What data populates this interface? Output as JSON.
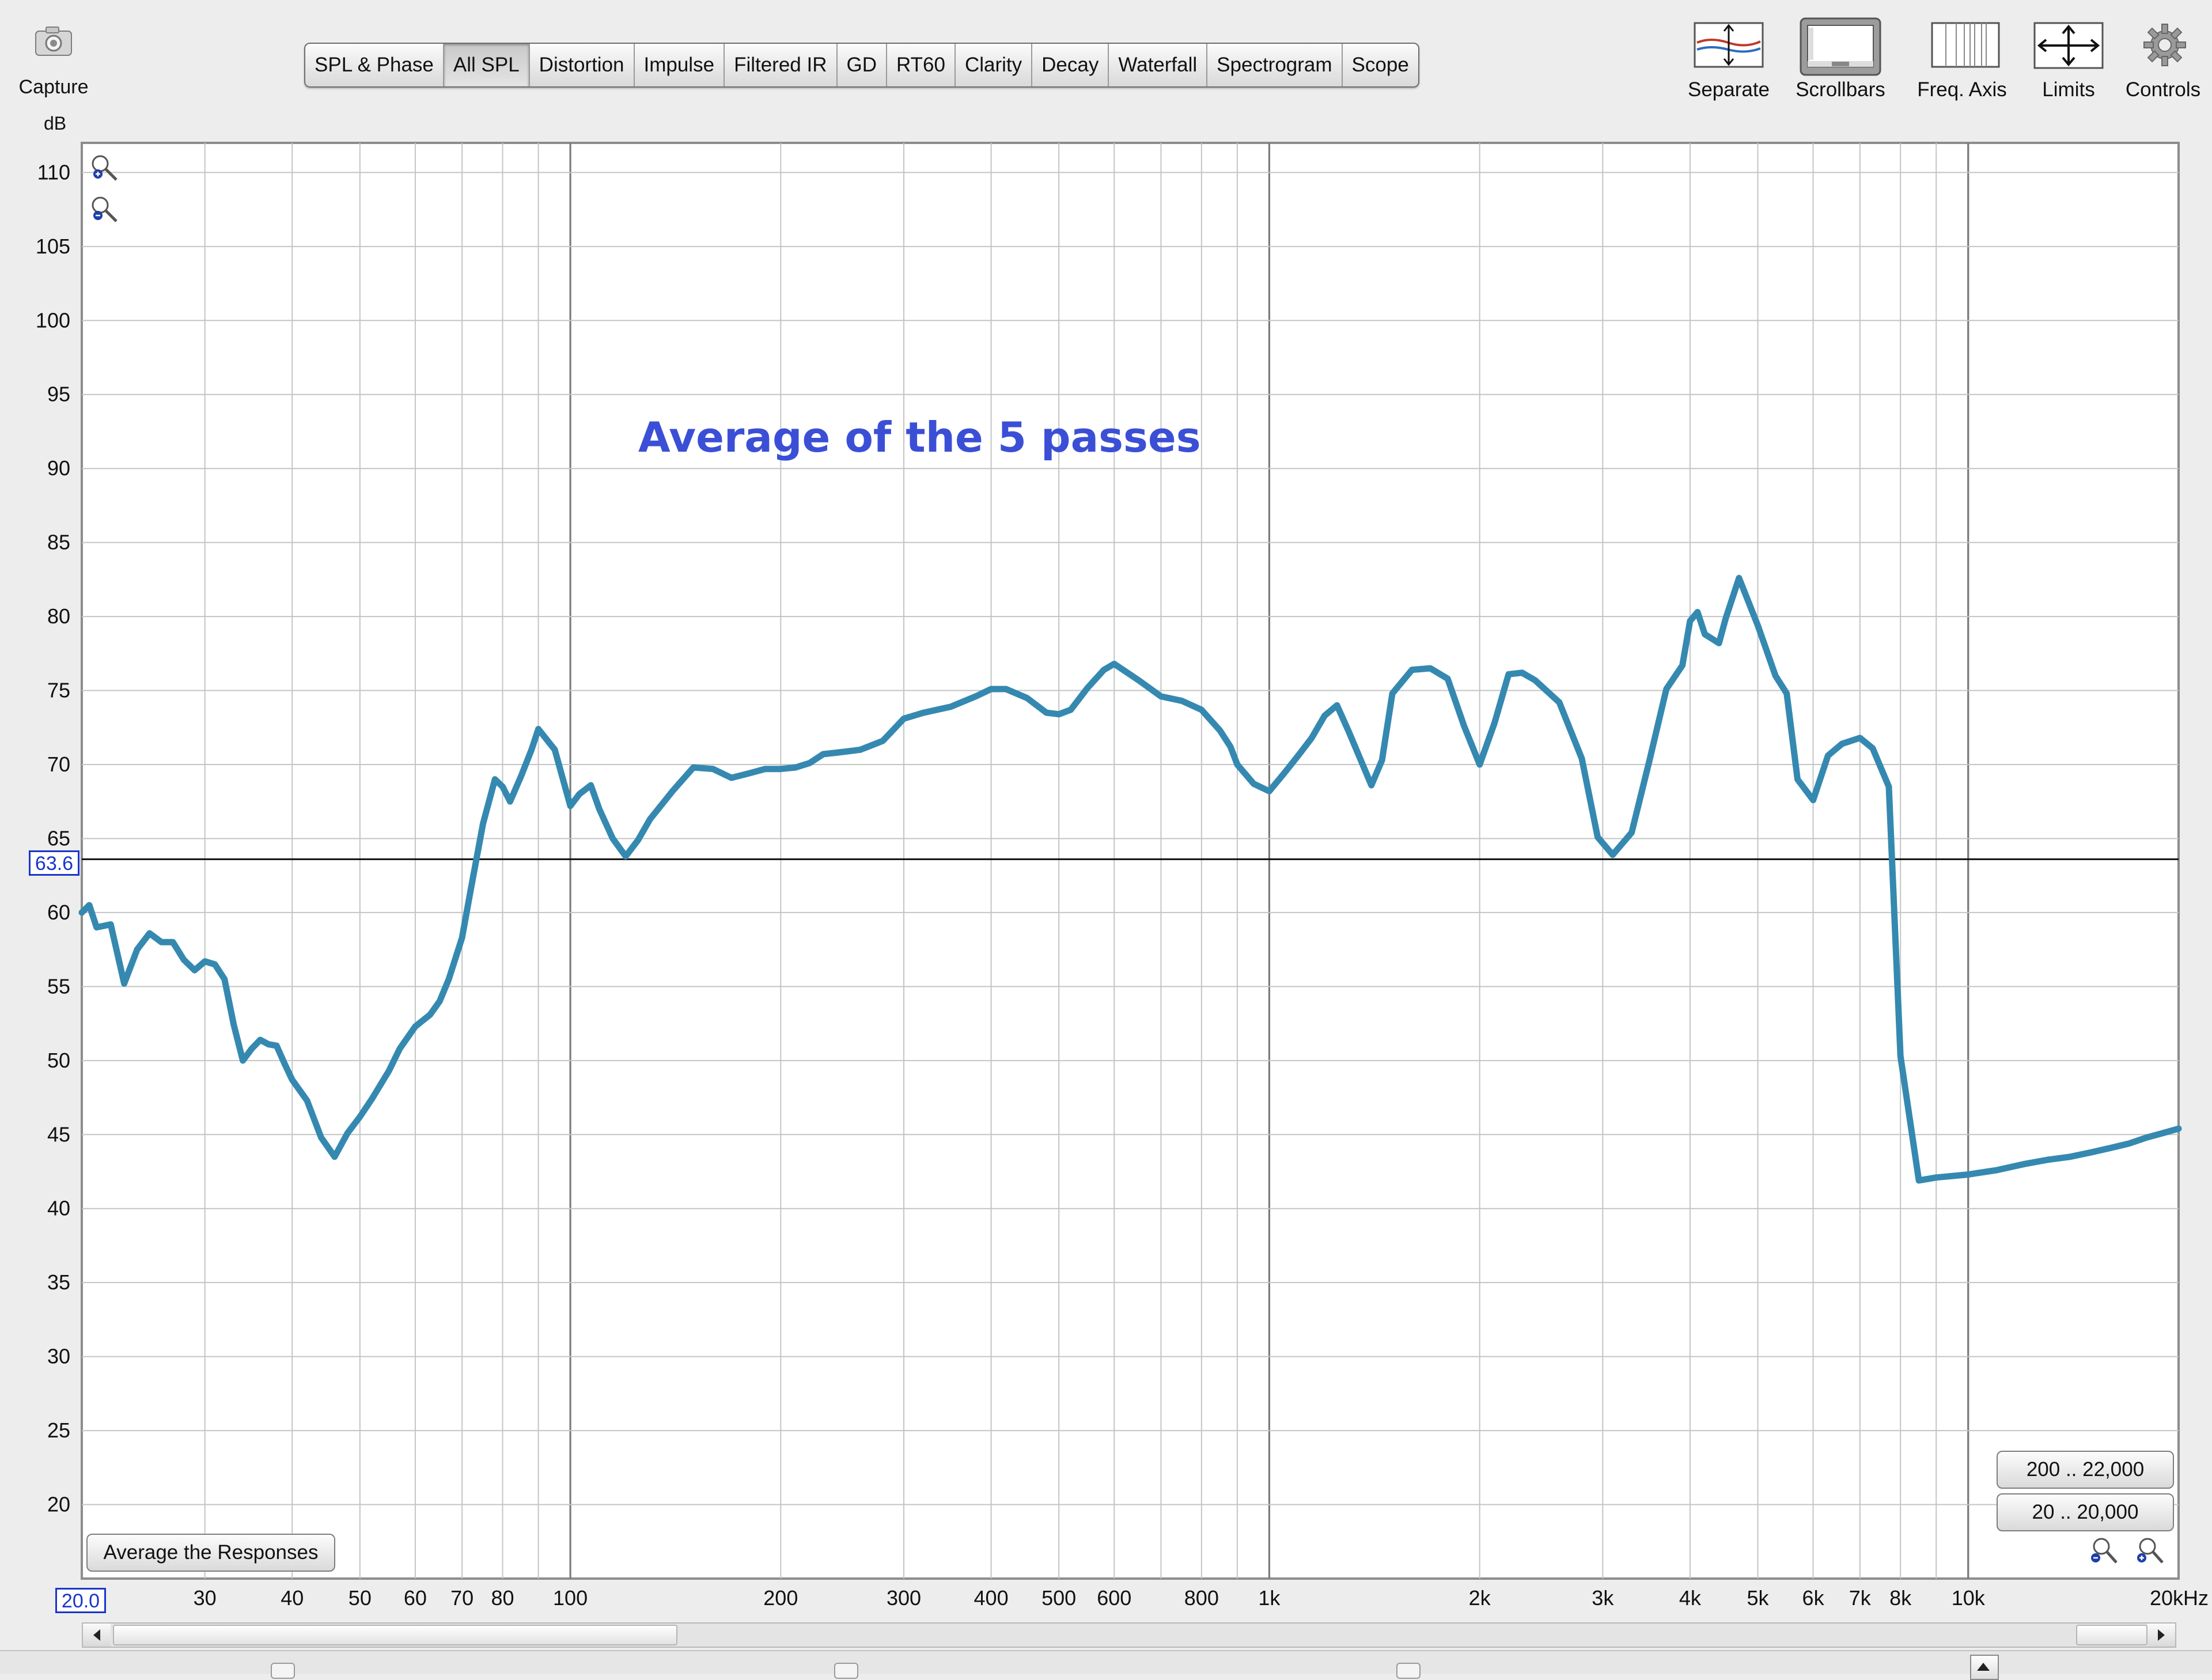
{
  "toolbar": {
    "capture_label": "Capture",
    "tabs": [
      "SPL & Phase",
      "All SPL",
      "Distortion",
      "Impulse",
      "Filtered IR",
      "GD",
      "RT60",
      "Clarity",
      "Decay",
      "Waterfall",
      "Spectrogram",
      "Scope"
    ],
    "active_tab": "All SPL",
    "tools": [
      {
        "label": "Separate",
        "icon": "separate-icon"
      },
      {
        "label": "Scrollbars",
        "icon": "scrollbars-icon"
      },
      {
        "label": "Freq. Axis",
        "icon": "freq-axis-icon"
      },
      {
        "label": "Limits",
        "icon": "limits-icon"
      },
      {
        "label": "Controls",
        "icon": "gear-icon"
      }
    ]
  },
  "y_unit": "dB",
  "cursor_value": "63.6",
  "x_start_value": "20.0",
  "buttons": {
    "average": "Average the Responses",
    "range_200": "200 .. 22,000",
    "range_20": "20 .. 20,000"
  },
  "colors": {
    "trace": "#3589b0",
    "title": "#3b4fd6",
    "grid_major": "#7a7a7a",
    "grid_minor": "#c4c4c4"
  },
  "chart_data": {
    "type": "line",
    "title": "Average of the 5 passes",
    "xlabel": "",
    "ylabel": "dB",
    "x_scale": "log",
    "xlim": [
      20,
      20000
    ],
    "ylim": [
      15,
      112
    ],
    "grid": true,
    "y_ticks": [
      20,
      25,
      30,
      35,
      40,
      45,
      50,
      55,
      60,
      65,
      70,
      75,
      80,
      85,
      90,
      95,
      100,
      105,
      110
    ],
    "x_ticks": [
      {
        "v": 30,
        "label": "30"
      },
      {
        "v": 40,
        "label": "40"
      },
      {
        "v": 50,
        "label": "50"
      },
      {
        "v": 60,
        "label": "60"
      },
      {
        "v": 70,
        "label": "70"
      },
      {
        "v": 80,
        "label": "80"
      },
      {
        "v": 100,
        "label": "100"
      },
      {
        "v": 200,
        "label": "200"
      },
      {
        "v": 300,
        "label": "300"
      },
      {
        "v": 400,
        "label": "400"
      },
      {
        "v": 500,
        "label": "500"
      },
      {
        "v": 600,
        "label": "600"
      },
      {
        "v": 800,
        "label": "800"
      },
      {
        "v": 1000,
        "label": "1k"
      },
      {
        "v": 2000,
        "label": "2k"
      },
      {
        "v": 3000,
        "label": "3k"
      },
      {
        "v": 4000,
        "label": "4k"
      },
      {
        "v": 5000,
        "label": "5k"
      },
      {
        "v": 6000,
        "label": "6k"
      },
      {
        "v": 7000,
        "label": "7k"
      },
      {
        "v": 8000,
        "label": "8k"
      },
      {
        "v": 10000,
        "label": "10k"
      },
      {
        "v": 20000,
        "label": "20kHz"
      }
    ],
    "reference_line": 63.6,
    "series": [
      {
        "x": [
          20,
          20.5,
          21,
          22,
          23,
          24,
          25,
          26,
          27,
          28,
          29,
          30,
          31,
          32,
          33,
          34,
          35,
          36,
          37,
          38,
          39,
          40,
          42,
          44,
          46,
          48,
          50,
          52,
          55,
          57,
          60,
          63,
          65,
          67,
          70,
          72,
          75,
          78,
          80,
          82,
          85,
          88,
          90,
          95,
          100,
          103,
          107,
          110,
          115,
          120,
          125,
          130,
          140,
          150,
          160,
          170,
          180,
          190,
          200,
          210,
          220,
          230,
          240,
          250,
          260,
          280,
          300,
          320,
          350,
          380,
          400,
          420,
          450,
          480,
          500,
          520,
          550,
          580,
          600,
          650,
          700,
          750,
          800,
          850,
          880,
          900,
          950,
          1000,
          1050,
          1100,
          1150,
          1200,
          1250,
          1300,
          1400,
          1450,
          1500,
          1600,
          1700,
          1800,
          1900,
          2000,
          2100,
          2200,
          2300,
          2400,
          2600,
          2800,
          2950,
          3100,
          3300,
          3500,
          3700,
          3900,
          4000,
          4100,
          4200,
          4400,
          4500,
          4700,
          5000,
          5300,
          5500,
          5700,
          6000,
          6300,
          6600,
          7000,
          7300,
          7700,
          8000,
          8500,
          9000,
          10000,
          11000,
          12000,
          13000,
          14000,
          15000,
          16000,
          17000,
          18000,
          19000,
          20000
        ],
        "y": [
          60.0,
          60.5,
          59.0,
          59.2,
          55.2,
          57.5,
          58.6,
          58.0,
          58.0,
          56.8,
          56.1,
          56.7,
          56.5,
          55.5,
          52.4,
          50.0,
          50.8,
          51.4,
          51.1,
          51.0,
          49.8,
          48.7,
          47.3,
          44.8,
          43.5,
          45.1,
          46.2,
          47.4,
          49.3,
          50.8,
          52.3,
          53.1,
          54.0,
          55.5,
          58.3,
          61.5,
          66.0,
          69.0,
          68.5,
          67.5,
          69.2,
          71.0,
          72.4,
          71.0,
          67.2,
          68.0,
          68.6,
          67.0,
          65.0,
          63.8,
          64.9,
          66.3,
          68.2,
          69.8,
          69.7,
          69.1,
          69.4,
          69.7,
          69.7,
          69.8,
          70.1,
          70.7,
          70.8,
          70.9,
          71.0,
          71.6,
          73.1,
          73.5,
          73.9,
          74.6,
          75.1,
          75.1,
          74.5,
          73.5,
          73.4,
          73.7,
          75.2,
          76.4,
          76.8,
          75.7,
          74.6,
          74.3,
          73.7,
          72.3,
          71.2,
          70.0,
          68.7,
          68.2,
          69.4,
          70.6,
          71.8,
          73.3,
          74.0,
          72.2,
          68.6,
          70.3,
          74.8,
          76.4,
          76.5,
          75.8,
          72.6,
          70.0,
          72.8,
          76.1,
          76.2,
          75.7,
          74.2,
          70.4,
          65.1,
          63.9,
          65.4,
          70.3,
          75.1,
          76.7,
          79.7,
          80.3,
          78.8,
          78.2,
          79.9,
          82.6,
          79.4,
          76.0,
          74.8,
          69.0,
          67.6,
          70.6,
          71.4,
          71.8,
          71.1,
          68.5,
          50.3,
          41.9,
          42.1,
          42.3,
          42.6,
          43.0,
          43.3,
          43.5,
          43.8,
          44.1,
          44.4,
          44.8,
          45.1,
          45.4
        ]
      }
    ]
  }
}
